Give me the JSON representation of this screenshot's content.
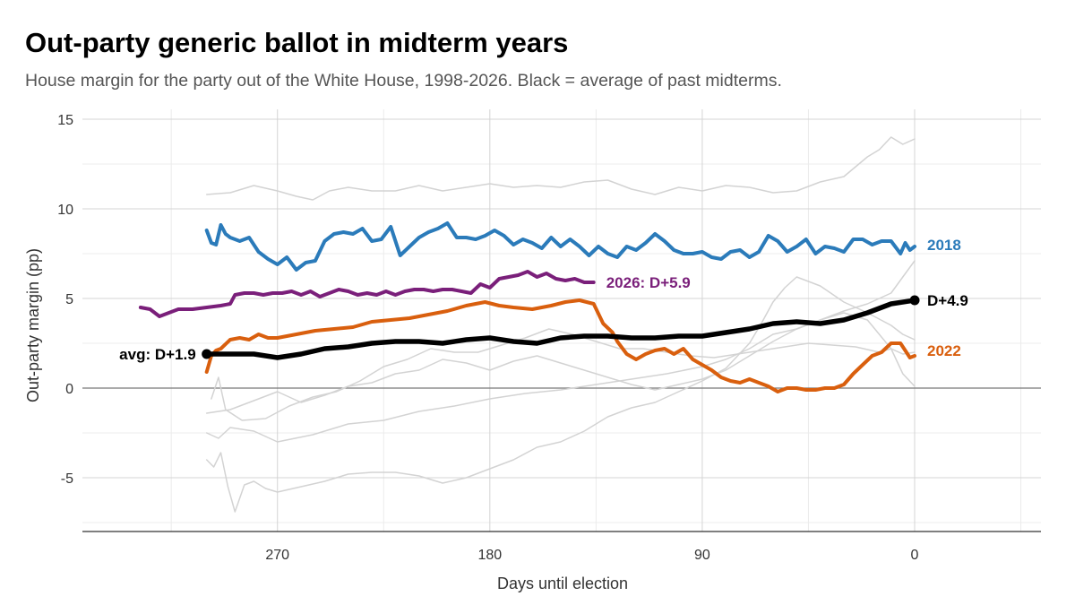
{
  "title": "Out-party generic ballot in midterm years",
  "subtitle": "House margin for the party out of the White House, 1998-2026. Black = average of past midterms.",
  "chart_data": {
    "type": "line",
    "title": "Out-party generic ballot in midterm years",
    "subtitle": "House margin for the party out of the White House, 1998-2026. Black = average of past midterms.",
    "xlabel": "Days until election",
    "ylabel": "Out-party margin (pp)",
    "x_reversed": true,
    "xlim": [
      350,
      -45
    ],
    "ylim": [
      -8,
      15.5
    ],
    "xticks": [
      270,
      180,
      90,
      0
    ],
    "yticks": [
      15,
      10,
      5,
      0,
      -5
    ],
    "ytick_labels": [
      "15",
      "10",
      "5",
      "0",
      "-5"
    ],
    "grid": true,
    "zero_line": true,
    "series": [
      {
        "name": "",
        "color": "#d3d3d3",
        "width": 1.5,
        "x": [
          300,
          290,
          280,
          270,
          262,
          255,
          248,
          240,
          230,
          220,
          210,
          200,
          190,
          180,
          170,
          160,
          150,
          140,
          130,
          120,
          110,
          100,
          90,
          80,
          70,
          60,
          50,
          40,
          30,
          20,
          15,
          10,
          5,
          0
        ],
        "y": [
          10.8,
          10.9,
          11.3,
          11.0,
          10.7,
          10.5,
          11.0,
          11.2,
          11.0,
          11.0,
          11.3,
          11.0,
          11.2,
          11.4,
          11.2,
          11.3,
          11.2,
          11.5,
          11.6,
          11.1,
          10.8,
          11.2,
          11.0,
          11.3,
          11.2,
          10.9,
          11.0,
          11.5,
          11.8,
          12.9,
          13.3,
          14.0,
          13.6,
          13.9
        ]
      },
      {
        "name": "",
        "color": "#d3d3d3",
        "width": 1.5,
        "x": [
          300,
          295,
          290,
          280,
          270,
          255,
          240,
          225,
          210,
          195,
          180,
          165,
          150,
          135,
          120,
          105,
          90,
          80,
          70,
          60,
          50,
          40,
          30,
          20,
          10,
          5,
          0
        ],
        "y": [
          -2.5,
          -2.8,
          -2.2,
          -2.4,
          -3.0,
          -2.6,
          -2.0,
          -1.8,
          -1.3,
          -1.0,
          -0.6,
          -0.3,
          -0.1,
          0.2,
          0.5,
          0.8,
          1.2,
          1.6,
          2.2,
          3.0,
          3.3,
          3.8,
          4.3,
          4.7,
          5.3,
          6.2,
          7.1
        ]
      },
      {
        "name": "",
        "color": "#d3d3d3",
        "width": 1.5,
        "x": [
          300,
          297,
          294,
          291,
          288,
          284,
          280,
          275,
          270,
          260,
          250,
          240,
          230,
          220,
          210,
          200,
          190,
          180,
          170,
          160,
          150,
          140,
          130,
          120,
          110,
          100,
          90,
          80,
          75,
          70,
          65,
          60,
          55,
          50,
          40,
          30,
          20,
          10,
          5,
          0
        ],
        "y": [
          -4.0,
          -4.4,
          -3.6,
          -5.5,
          -6.9,
          -5.4,
          -5.2,
          -5.6,
          -5.8,
          -5.5,
          -5.2,
          -4.8,
          -4.7,
          -4.7,
          -4.9,
          -5.3,
          -5.0,
          -4.5,
          -4.0,
          -3.3,
          -3.0,
          -2.4,
          -1.6,
          -1.1,
          -0.8,
          -0.2,
          0.4,
          1.1,
          1.8,
          2.5,
          3.6,
          4.8,
          5.6,
          6.2,
          5.7,
          4.8,
          4.2,
          3.5,
          3.0,
          2.7
        ]
      },
      {
        "name": "",
        "color": "#d3d3d3",
        "width": 1.5,
        "x": [
          298,
          295,
          292,
          285,
          275,
          265,
          255,
          245,
          235,
          225,
          215,
          205,
          195,
          185,
          175,
          165,
          155,
          145,
          135,
          125,
          115,
          105,
          95,
          85,
          75,
          65,
          55,
          45,
          35,
          25,
          15,
          10,
          5,
          0
        ],
        "y": [
          -0.6,
          0.6,
          -1.2,
          -1.8,
          -1.7,
          -1.0,
          -0.5,
          -0.2,
          0.4,
          1.2,
          1.6,
          2.2,
          2.0,
          2.0,
          2.4,
          2.8,
          3.3,
          3.0,
          2.6,
          2.2,
          2.2,
          2.0,
          1.8,
          1.7,
          1.9,
          2.1,
          2.3,
          2.5,
          2.4,
          2.3,
          2.0,
          2.2,
          1.9,
          2.0
        ]
      },
      {
        "name": "",
        "color": "#d3d3d3",
        "width": 1.5,
        "x": [
          300,
          290,
          280,
          270,
          260,
          250,
          240,
          230,
          220,
          210,
          200,
          190,
          180,
          170,
          160,
          150,
          140,
          130,
          120,
          110,
          100,
          90,
          80,
          70,
          60,
          50,
          40,
          30,
          20,
          10,
          5,
          0
        ],
        "y": [
          -1.4,
          -1.2,
          -0.7,
          -0.2,
          -0.8,
          -0.4,
          0.1,
          0.3,
          0.8,
          1.0,
          1.6,
          1.4,
          1.0,
          1.5,
          1.8,
          1.4,
          1.0,
          0.6,
          0.2,
          -0.1,
          0.2,
          0.5,
          1.0,
          1.8,
          2.6,
          3.3,
          3.8,
          4.2,
          3.8,
          2.2,
          0.8,
          0.1
        ]
      },
      {
        "name": "2018",
        "color": "#2b7bba",
        "width": 4,
        "x": [
          300,
          298,
          296,
          294,
          292,
          290,
          286,
          282,
          278,
          274,
          270,
          266,
          262,
          258,
          254,
          250,
          246,
          242,
          238,
          234,
          230,
          226,
          222,
          218,
          214,
          210,
          206,
          202,
          198,
          194,
          190,
          186,
          182,
          178,
          174,
          170,
          166,
          162,
          158,
          154,
          150,
          146,
          142,
          138,
          134,
          130,
          126,
          122,
          118,
          114,
          110,
          106,
          102,
          98,
          94,
          90,
          86,
          82,
          78,
          74,
          70,
          66,
          62,
          58,
          54,
          50,
          46,
          42,
          38,
          34,
          30,
          26,
          22,
          18,
          14,
          10,
          6,
          4,
          2,
          0
        ],
        "y": [
          8.8,
          8.1,
          8.0,
          9.1,
          8.6,
          8.4,
          8.2,
          8.4,
          7.6,
          7.2,
          6.9,
          7.3,
          6.6,
          7.0,
          7.1,
          8.2,
          8.6,
          8.7,
          8.6,
          8.9,
          8.2,
          8.3,
          9.0,
          7.4,
          7.9,
          8.4,
          8.7,
          8.9,
          9.2,
          8.4,
          8.4,
          8.3,
          8.5,
          8.8,
          8.5,
          8.0,
          8.3,
          8.1,
          7.8,
          8.4,
          7.9,
          8.3,
          7.9,
          7.4,
          7.9,
          7.5,
          7.3,
          7.9,
          7.7,
          8.1,
          8.6,
          8.2,
          7.7,
          7.5,
          7.5,
          7.6,
          7.3,
          7.2,
          7.6,
          7.7,
          7.3,
          7.6,
          8.5,
          8.2,
          7.6,
          7.9,
          8.3,
          7.5,
          7.9,
          7.8,
          7.6,
          8.3,
          8.3,
          8.0,
          8.2,
          8.2,
          7.5,
          8.1,
          7.7,
          7.9
        ]
      },
      {
        "name": "2022",
        "color": "#d95f0e",
        "width": 4,
        "x": [
          300,
          298,
          296,
          294,
          290,
          286,
          282,
          278,
          274,
          270,
          262,
          254,
          246,
          238,
          230,
          222,
          214,
          206,
          198,
          190,
          182,
          176,
          170,
          162,
          154,
          148,
          142,
          136,
          132,
          128,
          126,
          122,
          118,
          114,
          110,
          106,
          102,
          98,
          94,
          90,
          86,
          82,
          78,
          74,
          70,
          66,
          62,
          58,
          54,
          50,
          46,
          42,
          38,
          34,
          30,
          26,
          22,
          18,
          14,
          10,
          6,
          4,
          2,
          0
        ],
        "y": [
          0.9,
          1.8,
          2.1,
          2.2,
          2.7,
          2.8,
          2.7,
          3.0,
          2.8,
          2.8,
          3.0,
          3.2,
          3.3,
          3.4,
          3.7,
          3.8,
          3.9,
          4.1,
          4.3,
          4.6,
          4.8,
          4.6,
          4.5,
          4.4,
          4.6,
          4.8,
          4.9,
          4.7,
          3.6,
          3.1,
          2.6,
          1.9,
          1.6,
          1.9,
          2.1,
          2.2,
          1.9,
          2.2,
          1.6,
          1.3,
          1.0,
          0.6,
          0.4,
          0.3,
          0.5,
          0.3,
          0.1,
          -0.2,
          0.0,
          0.0,
          -0.1,
          -0.1,
          0.0,
          0.0,
          0.2,
          0.8,
          1.3,
          1.8,
          2.0,
          2.5,
          2.5,
          2.1,
          1.7,
          1.8
        ]
      },
      {
        "name": "2026",
        "color": "#7a1f7a",
        "width": 4,
        "x": [
          328,
          324,
          320,
          316,
          312,
          306,
          300,
          294,
          290,
          288,
          284,
          280,
          276,
          272,
          268,
          264,
          260,
          256,
          252,
          248,
          244,
          240,
          236,
          232,
          228,
          224,
          220,
          216,
          212,
          208,
          204,
          200,
          196,
          192,
          188,
          184,
          180,
          176,
          172,
          168,
          164,
          160,
          156,
          152,
          148,
          144,
          140,
          136
        ],
        "y": [
          4.5,
          4.4,
          4.0,
          4.2,
          4.4,
          4.4,
          4.5,
          4.6,
          4.7,
          5.2,
          5.3,
          5.3,
          5.2,
          5.3,
          5.3,
          5.4,
          5.2,
          5.4,
          5.1,
          5.3,
          5.5,
          5.4,
          5.2,
          5.3,
          5.2,
          5.4,
          5.2,
          5.4,
          5.5,
          5.5,
          5.4,
          5.5,
          5.5,
          5.4,
          5.3,
          5.8,
          5.6,
          6.1,
          6.2,
          6.3,
          6.5,
          6.2,
          6.4,
          6.1,
          6.0,
          6.1,
          5.9,
          5.9
        ]
      },
      {
        "name": "",
        "color": "#000000",
        "width": 5.5,
        "x": [
          300,
          290,
          280,
          270,
          260,
          250,
          240,
          230,
          220,
          210,
          200,
          190,
          180,
          170,
          160,
          150,
          140,
          130,
          120,
          110,
          100,
          90,
          80,
          70,
          60,
          50,
          40,
          30,
          20,
          10,
          0
        ],
        "y": [
          1.9,
          1.9,
          1.9,
          1.7,
          1.9,
          2.2,
          2.3,
          2.5,
          2.6,
          2.6,
          2.5,
          2.7,
          2.8,
          2.6,
          2.5,
          2.8,
          2.9,
          2.9,
          2.8,
          2.8,
          2.9,
          2.9,
          3.1,
          3.3,
          3.6,
          3.7,
          3.6,
          3.8,
          4.2,
          4.7,
          4.9
        ]
      }
    ],
    "annotations": [
      {
        "text": "avg: D+1.9",
        "x": 300,
        "y": 1.9,
        "color": "#000000",
        "side": "left"
      },
      {
        "text": "D+4.9",
        "x": 0,
        "y": 4.9,
        "color": "#000000",
        "side": "right"
      },
      {
        "text": "2018",
        "x": 0,
        "y": 8.0,
        "color": "#2b7bba",
        "side": "right"
      },
      {
        "text": "2022",
        "x": 0,
        "y": 2.1,
        "color": "#d95f0e",
        "side": "right"
      },
      {
        "text": "2026: D+5.9",
        "x": 136,
        "y": 5.9,
        "color": "#7a1f7a",
        "side": "right"
      }
    ],
    "endpoints": [
      {
        "x": 300,
        "y": 1.9,
        "color": "#000000"
      },
      {
        "x": 0,
        "y": 4.9,
        "color": "#000000"
      }
    ]
  }
}
